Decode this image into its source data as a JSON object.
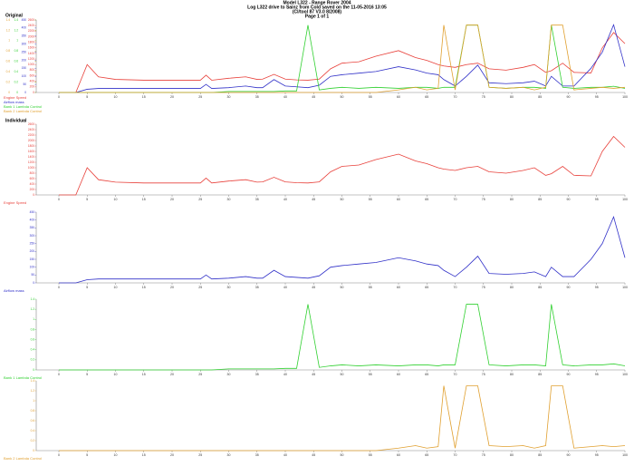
{
  "header": {
    "lines": [
      "Model L322 - Range Rover 2004",
      "Log L322 drive to Sainz from Cold saved on the 11-05-2016 13:05",
      "(Cl/tool 87 V3.0 8/2008)",
      "Page 1 of 1"
    ]
  },
  "chart_data": [
    {
      "type": "line",
      "title": "Original",
      "x": [
        0,
        3,
        5,
        7,
        10,
        15,
        20,
        25,
        26,
        27,
        30,
        33,
        35,
        36,
        38,
        40,
        42,
        44,
        46,
        48,
        50,
        53,
        56,
        60,
        63,
        65,
        67,
        68,
        70,
        72,
        74,
        76,
        79,
        82,
        84,
        86,
        87,
        89,
        91,
        94,
        96,
        98,
        100
      ],
      "xlim": [
        -4,
        100
      ],
      "xticks": [
        0,
        5,
        10,
        15,
        20,
        25,
        30,
        35,
        40,
        45,
        50,
        55,
        60,
        65,
        70,
        75,
        80,
        85,
        90,
        95,
        100
      ],
      "series": [
        {
          "name": "Engine Speed",
          "color": "#e8403a",
          "ylim": [
            0,
            2600
          ],
          "yticks": [
            0,
            200,
            400,
            600,
            800,
            1000,
            1200,
            1400,
            1600,
            1800,
            2000,
            2200,
            2400,
            2600
          ],
          "values": [
            0,
            0,
            1000,
            560,
            470,
            440,
            440,
            440,
            620,
            440,
            510,
            560,
            470,
            480,
            650,
            480,
            450,
            440,
            480,
            850,
            1050,
            1100,
            1300,
            1500,
            1250,
            1150,
            1000,
            950,
            900,
            1000,
            1050,
            850,
            800,
            900,
            1000,
            720,
            780,
            1050,
            720,
            700,
            1600,
            2150,
            1750
          ]
        },
        {
          "name": "Airflow mass",
          "color": "#3030c8",
          "ylim": [
            0,
            450
          ],
          "yticks": [
            0,
            50,
            100,
            150,
            200,
            250,
            300,
            350,
            400,
            450
          ],
          "values": [
            0,
            0,
            20,
            25,
            25,
            25,
            25,
            25,
            50,
            25,
            30,
            40,
            30,
            30,
            80,
            40,
            35,
            30,
            45,
            100,
            110,
            120,
            130,
            160,
            140,
            120,
            110,
            80,
            40,
            100,
            170,
            60,
            55,
            60,
            70,
            40,
            100,
            40,
            40,
            150,
            250,
            420,
            160
          ]
        },
        {
          "name": "Bank 1 Lambda Control",
          "color": "#30d030",
          "ylim": [
            0,
            1.4
          ],
          "yticks": [
            0,
            0.2,
            0.4,
            0.6,
            0.8,
            1,
            1.2,
            1.4
          ],
          "values": [
            0,
            0,
            0,
            0,
            0,
            0,
            0,
            0,
            0,
            0,
            0.02,
            0.02,
            0.02,
            0.02,
            0.02,
            0.03,
            0.03,
            1.3,
            0.05,
            0.08,
            0.1,
            0.08,
            0.1,
            0.08,
            0.1,
            0.1,
            0.08,
            0.1,
            0.1,
            1.3,
            1.3,
            0.1,
            0.08,
            0.1,
            0.1,
            0.08,
            1.3,
            0.1,
            0.08,
            0.1,
            0.1,
            0.12,
            0.08
          ]
        },
        {
          "name": "Bank 2 Lambda Control",
          "color": "#e0a030",
          "ylim": [
            0,
            1.4
          ],
          "yticks": [
            0,
            0.2,
            0.4,
            0.6,
            0.8,
            1,
            1.2,
            1.4
          ],
          "values": [
            0,
            0,
            0,
            0,
            0,
            0,
            0,
            0,
            0,
            0,
            0,
            0,
            0,
            0,
            0,
            0,
            0,
            0,
            0,
            0,
            0,
            0,
            0,
            0.05,
            0.1,
            0.05,
            0.08,
            1.3,
            0.05,
            1.3,
            1.3,
            0.1,
            0.08,
            0.1,
            0.05,
            0.1,
            1.3,
            1.3,
            0.05,
            0.08,
            0.1,
            0.08,
            0.1
          ]
        }
      ]
    },
    {
      "type": "line",
      "title": "Individual",
      "x": [
        0,
        3,
        5,
        7,
        10,
        15,
        20,
        25,
        26,
        27,
        30,
        33,
        35,
        36,
        38,
        40,
        42,
        44,
        46,
        48,
        50,
        53,
        56,
        60,
        63,
        65,
        67,
        68,
        70,
        72,
        74,
        76,
        79,
        82,
        84,
        86,
        87,
        89,
        91,
        94,
        96,
        98,
        100
      ],
      "xlim": [
        -4,
        100
      ],
      "xticks": [
        0,
        5,
        10,
        15,
        20,
        25,
        30,
        35,
        40,
        45,
        50,
        55,
        60,
        65,
        70,
        75,
        80,
        85,
        90,
        95,
        100
      ],
      "series": [
        {
          "name": "Engine Speed",
          "color": "#e8403a",
          "ylim": [
            0,
            2600
          ],
          "yticks": [
            0,
            200,
            400,
            600,
            800,
            1000,
            1200,
            1400,
            1600,
            1800,
            2000,
            2200,
            2400,
            2600
          ],
          "values": [
            0,
            0,
            1000,
            560,
            470,
            440,
            440,
            440,
            620,
            440,
            510,
            560,
            470,
            480,
            650,
            480,
            450,
            440,
            480,
            850,
            1050,
            1100,
            1300,
            1500,
            1250,
            1150,
            1000,
            950,
            900,
            1000,
            1050,
            850,
            800,
            900,
            1000,
            720,
            780,
            1050,
            720,
            700,
            1600,
            2150,
            1750
          ]
        }
      ]
    },
    {
      "type": "line",
      "x": [
        0,
        3,
        5,
        7,
        10,
        15,
        20,
        25,
        26,
        27,
        30,
        33,
        35,
        36,
        38,
        40,
        42,
        44,
        46,
        48,
        50,
        53,
        56,
        60,
        63,
        65,
        67,
        68,
        70,
        72,
        74,
        76,
        79,
        82,
        84,
        86,
        87,
        89,
        91,
        94,
        96,
        98,
        100
      ],
      "xlim": [
        -4,
        100
      ],
      "xticks": [
        0,
        5,
        10,
        15,
        20,
        25,
        30,
        35,
        40,
        45,
        50,
        55,
        60,
        65,
        70,
        75,
        80,
        85,
        90,
        95,
        100
      ],
      "series": [
        {
          "name": "Airflow mass",
          "color": "#3030c8",
          "ylim": [
            0,
            450
          ],
          "yticks": [
            0,
            50,
            100,
            150,
            200,
            250,
            300,
            350,
            400,
            450
          ],
          "values": [
            0,
            0,
            20,
            25,
            25,
            25,
            25,
            25,
            50,
            25,
            30,
            40,
            30,
            30,
            80,
            40,
            35,
            30,
            45,
            100,
            110,
            120,
            130,
            160,
            140,
            120,
            110,
            80,
            40,
            100,
            170,
            60,
            55,
            60,
            70,
            40,
            100,
            40,
            40,
            150,
            250,
            420,
            160
          ]
        }
      ]
    },
    {
      "type": "line",
      "x": [
        0,
        3,
        5,
        7,
        10,
        15,
        20,
        25,
        26,
        27,
        30,
        33,
        35,
        36,
        38,
        40,
        42,
        44,
        46,
        48,
        50,
        53,
        56,
        60,
        63,
        65,
        67,
        68,
        70,
        72,
        74,
        76,
        79,
        82,
        84,
        86,
        87,
        89,
        91,
        94,
        96,
        98,
        100
      ],
      "xlim": [
        -4,
        100
      ],
      "xticks": [
        0,
        5,
        10,
        15,
        20,
        25,
        30,
        35,
        40,
        45,
        50,
        55,
        60,
        65,
        70,
        75,
        80,
        85,
        90,
        95,
        100
      ],
      "series": [
        {
          "name": "Bank 1 Lambda Control",
          "color": "#30d030",
          "ylim": [
            0,
            1.4
          ],
          "yticks": [
            0,
            0.2,
            0.4,
            0.6,
            0.8,
            1,
            1.2,
            1.4
          ],
          "values": [
            0,
            0,
            0,
            0,
            0,
            0,
            0,
            0,
            0,
            0,
            0.02,
            0.02,
            0.02,
            0.02,
            0.02,
            0.03,
            0.03,
            1.3,
            0.05,
            0.08,
            0.1,
            0.08,
            0.1,
            0.08,
            0.1,
            0.1,
            0.08,
            0.1,
            0.1,
            1.3,
            1.3,
            0.1,
            0.08,
            0.1,
            0.1,
            0.08,
            1.3,
            0.1,
            0.08,
            0.1,
            0.1,
            0.12,
            0.08
          ]
        }
      ]
    },
    {
      "type": "line",
      "x": [
        0,
        3,
        5,
        7,
        10,
        15,
        20,
        25,
        26,
        27,
        30,
        33,
        35,
        36,
        38,
        40,
        42,
        44,
        46,
        48,
        50,
        53,
        56,
        60,
        63,
        65,
        67,
        68,
        70,
        72,
        74,
        76,
        79,
        82,
        84,
        86,
        87,
        89,
        91,
        94,
        96,
        98,
        100
      ],
      "xlim": [
        -4,
        100
      ],
      "xticks": [
        0,
        5,
        10,
        15,
        20,
        25,
        30,
        35,
        40,
        45,
        50,
        55,
        60,
        65,
        70,
        75,
        80,
        85,
        90,
        95,
        100
      ],
      "series": [
        {
          "name": "Bank 2 Lambda Control",
          "color": "#e0a030",
          "ylim": [
            0,
            1.4
          ],
          "yticks": [
            0,
            0.2,
            0.4,
            0.6,
            0.8,
            1,
            1.2,
            1.4
          ],
          "values": [
            0,
            0,
            0,
            0,
            0,
            0,
            0,
            0,
            0,
            0,
            0,
            0,
            0,
            0,
            0,
            0,
            0,
            0,
            0,
            0,
            0,
            0,
            0,
            0.05,
            0.1,
            0.05,
            0.08,
            1.3,
            0.05,
            1.3,
            1.3,
            0.1,
            0.08,
            0.1,
            0.05,
            0.1,
            1.3,
            1.3,
            0.05,
            0.08,
            0.1,
            0.08,
            0.1
          ]
        }
      ]
    }
  ]
}
